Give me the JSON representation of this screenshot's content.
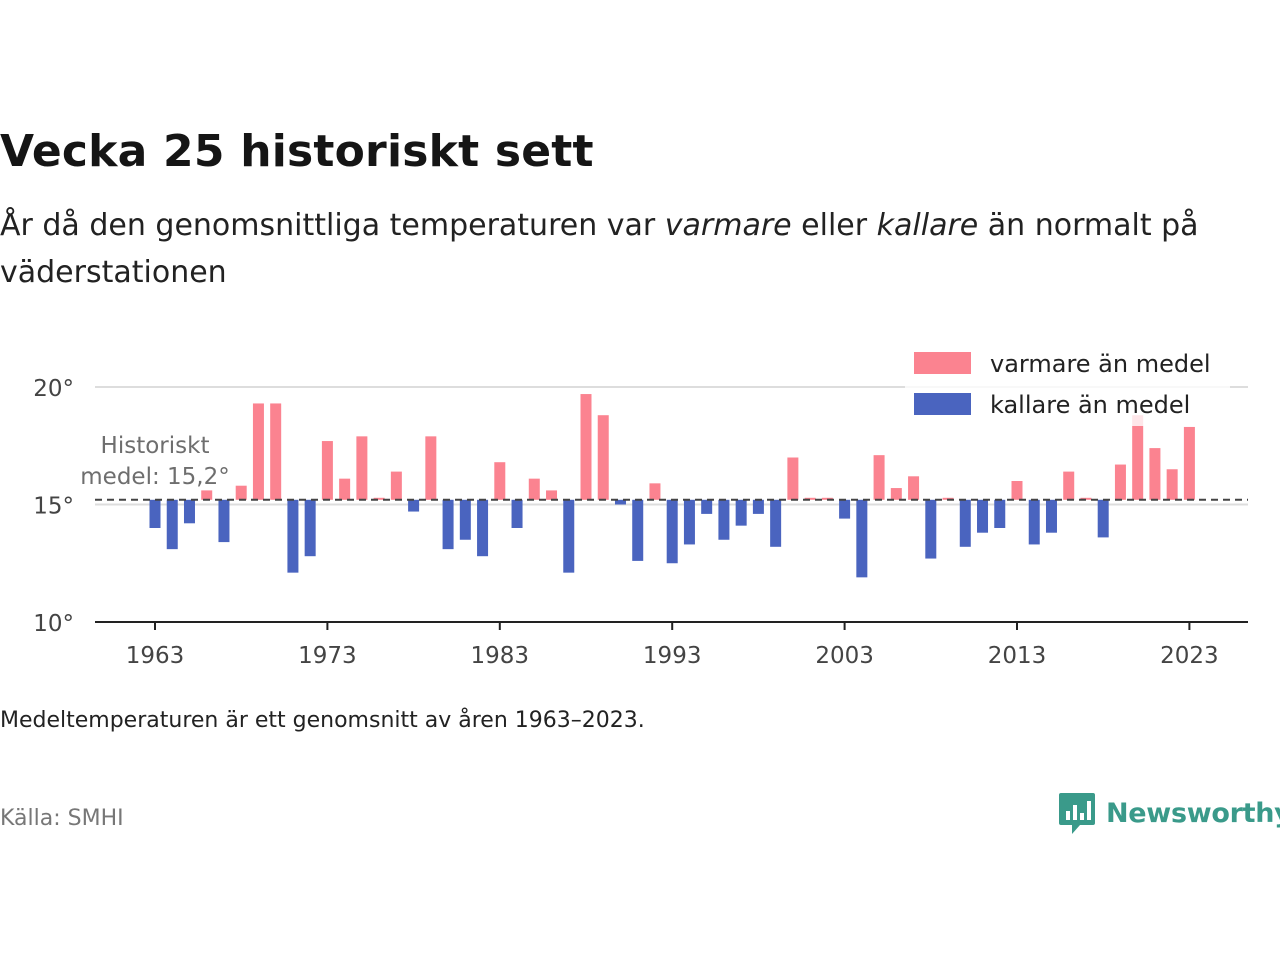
{
  "title": "Vecka 25 historiskt sett",
  "subtitle": {
    "part1": "År då den genomsnittliga temperaturen var ",
    "warm_word": "varmare",
    "part2": " eller ",
    "cold_word": "kallare",
    "part3": " än normalt på väderstationen"
  },
  "note": "Medeltemperaturen är ett genomsnitt av åren 1963–2023.",
  "source": "Källa: SMHI",
  "logo": {
    "text": "Newsworthy",
    "icon": "newsworthy-chart-bubble-icon",
    "color": "#3a9a8a"
  },
  "chart_data": {
    "type": "bar",
    "mean": 15.2,
    "mean_label_line1": "Historiskt",
    "mean_label_line2": "medel: 15,2°",
    "ylim": [
      10,
      21
    ],
    "yticks": [
      10,
      15,
      20
    ],
    "ytick_labels": [
      "10°",
      "15°",
      "20°"
    ],
    "xticks": [
      1963,
      1973,
      1983,
      1993,
      2003,
      2013,
      2023
    ],
    "grid": true,
    "legend_position": "top-right",
    "colors": {
      "warm": "#fb8390",
      "cold": "#4a64bf",
      "mean_line": "#444444",
      "axis": "#222222",
      "grid": "#dddddd"
    },
    "series": [
      {
        "name": "varmare än medel",
        "color": "#fb8390"
      },
      {
        "name": "kallare än medel",
        "color": "#4a64bf"
      }
    ],
    "x": [
      1963,
      1964,
      1965,
      1966,
      1967,
      1968,
      1969,
      1970,
      1971,
      1972,
      1973,
      1974,
      1975,
      1976,
      1977,
      1978,
      1979,
      1980,
      1981,
      1982,
      1983,
      1984,
      1985,
      1986,
      1987,
      1988,
      1989,
      1990,
      1991,
      1992,
      1993,
      1994,
      1995,
      1996,
      1997,
      1998,
      1999,
      2000,
      2001,
      2002,
      2003,
      2004,
      2005,
      2006,
      2007,
      2008,
      2009,
      2010,
      2011,
      2012,
      2013,
      2014,
      2015,
      2016,
      2017,
      2018,
      2019,
      2020,
      2021,
      2022,
      2023
    ],
    "values": [
      14.0,
      13.1,
      14.2,
      15.6,
      13.4,
      15.8,
      19.3,
      19.3,
      12.1,
      12.8,
      17.7,
      16.1,
      17.9,
      15.2,
      16.4,
      14.7,
      17.9,
      13.1,
      13.5,
      12.8,
      16.8,
      14.0,
      16.1,
      15.6,
      12.1,
      19.7,
      18.8,
      15.0,
      12.6,
      15.9,
      12.5,
      13.3,
      14.6,
      13.5,
      14.1,
      14.6,
      13.2,
      17.0,
      15.2,
      15.2,
      14.4,
      11.9,
      17.1,
      15.7,
      16.2,
      12.7,
      15.2,
      13.2,
      13.8,
      14.0,
      16.0,
      13.3,
      13.8,
      16.4,
      15.2,
      13.6,
      16.7,
      18.8,
      17.4,
      16.5,
      18.3
    ]
  }
}
